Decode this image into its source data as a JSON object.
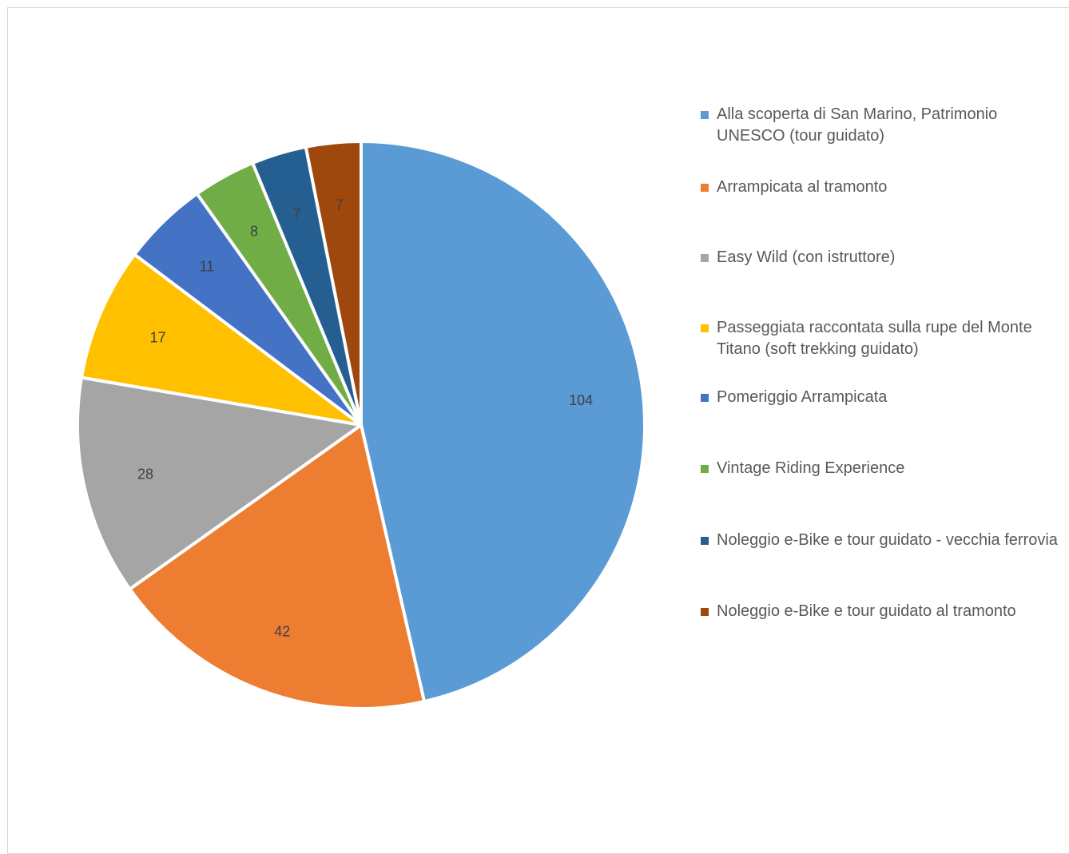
{
  "chart_data": {
    "type": "pie",
    "slices": [
      {
        "label": "Alla scoperta di San Marino, Patrimonio UNESCO (tour guidato)",
        "value": 104,
        "value_label": "104",
        "color": "#5b9bd5"
      },
      {
        "label": "Arrampicata al tramonto",
        "value": 42,
        "value_label": "42",
        "color": "#ed7d31"
      },
      {
        "label": "Easy Wild (con istruttore)",
        "value": 28,
        "value_label": "28",
        "color": "#a5a5a5"
      },
      {
        "label": "Passeggiata raccontata sulla rupe del Monte Titano (soft trekking guidato)",
        "value": 17,
        "value_label": "17",
        "color": "#ffc000"
      },
      {
        "label": "Pomeriggio Arrampicata",
        "value": 11,
        "value_label": "11",
        "color": "#4472c4"
      },
      {
        "label": "Vintage Riding Experience",
        "value": 8,
        "value_label": "8",
        "color": "#70ad47"
      },
      {
        "label": "Noleggio e-Bike e tour guidato - vecchia ferrovia",
        "value": 7,
        "value_label": "7",
        "color": "#255e91"
      },
      {
        "label": "Noleggio e-Bike e tour guidato al tramonto",
        "value": 7,
        "value_label": "7",
        "color": "#9e480e"
      }
    ],
    "legend_position": "right",
    "start_angle_deg": 0,
    "direction": "clockwise"
  }
}
